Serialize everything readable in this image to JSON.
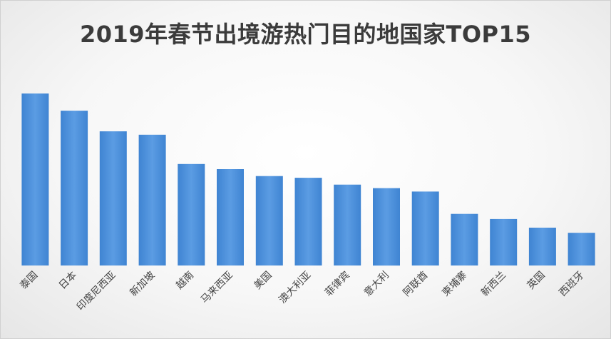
{
  "chart_data": {
    "type": "bar",
    "title": "2019年春节出境游热门目的地国家TOP15",
    "categories": [
      "泰国",
      "日本",
      "印度尼西亚",
      "新加坡",
      "越南",
      "马来西亚",
      "美国",
      "澳大利亚",
      "菲律宾",
      "意大利",
      "阿联酋",
      "柬埔寨",
      "新西兰",
      "英国",
      "西班牙"
    ],
    "values": [
      100,
      90,
      78,
      76,
      59,
      56,
      52,
      51,
      47,
      45,
      43,
      30,
      27,
      22,
      19
    ],
    "ylim": [
      0,
      100
    ],
    "xlabel": "",
    "ylabel": "",
    "grid": false,
    "legend": "none",
    "bar_color": "#4a8fd8"
  }
}
